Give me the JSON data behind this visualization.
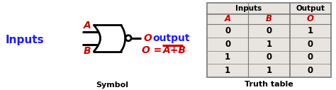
{
  "inputs_label": "Inputs",
  "inputs_color": "#1a1aff",
  "symbol_label": "Symbol",
  "truth_table_label": "Truth table",
  "output_label": "output",
  "output_color": "#1a1aff",
  "eq_color": "#cc0000",
  "A_label": "A",
  "B_label": "B",
  "O_label": "O",
  "table_header_inputs": "Inputs",
  "table_header_output": "Output",
  "table_col_A": "A",
  "table_col_B": "B",
  "table_col_O": "O",
  "table_data_A": [
    0,
    0,
    1,
    1
  ],
  "table_data_B": [
    0,
    1,
    0,
    1
  ],
  "table_data_O": [
    1,
    0,
    0,
    0
  ],
  "table_header_color": "#000000",
  "table_ab_color": "#cc0000",
  "table_o_color": "#cc0000",
  "table_border_color": "#777777",
  "table_bg_color": "#e8e4e0"
}
